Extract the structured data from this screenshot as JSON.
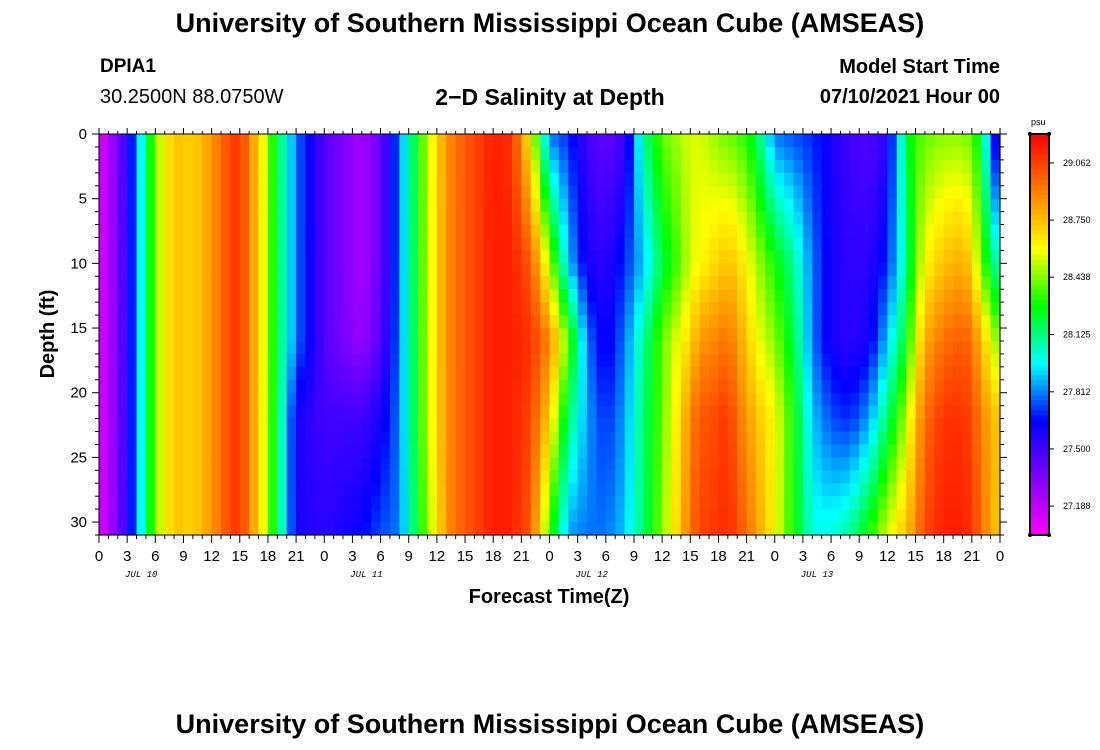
{
  "header": {
    "title": "University of Southern Mississippi Ocean Cube (AMSEAS)",
    "station_id": "DPIA1",
    "station_coords": "30.2500N  88.0750W",
    "plot_title": "2−D Salinity at Depth",
    "model_start_label": "Model Start Time",
    "model_start_value": "07/10/2021 Hour 00"
  },
  "footer": {
    "title": "University of Southern Mississippi Ocean Cube (AMSEAS)"
  },
  "chart_data": {
    "type": "heatmap",
    "title": "2−D Salinity at Depth",
    "xlabel": "Forecast Time(Z)",
    "ylabel": "Depth (ft)",
    "x_unit": "hours since 07/10/2021 00Z",
    "x_range": [
      0,
      96
    ],
    "y_range": [
      0,
      31
    ],
    "y_ticks": [
      0,
      5,
      10,
      15,
      20,
      25,
      30
    ],
    "x_tick_labels": [
      "0",
      "3",
      "6",
      "9",
      "12",
      "15",
      "18",
      "21",
      "0",
      "3",
      "6",
      "9",
      "12",
      "15",
      "18",
      "21",
      "0",
      "3",
      "6",
      "9",
      "12",
      "15",
      "18",
      "21",
      "0",
      "3",
      "6",
      "9",
      "12",
      "15",
      "18",
      "21",
      "0"
    ],
    "date_labels": [
      "JUL 10",
      "JUL 11",
      "JUL 12",
      "JUL 13"
    ],
    "colorbar": {
      "unit": "psu",
      "range": [
        27.03,
        29.22
      ],
      "ticks": [
        27.188,
        27.5,
        27.812,
        28.125,
        28.438,
        28.75,
        29.062
      ],
      "colors": [
        "#ff00ff",
        "#8000ff",
        "#0000ff",
        "#00ffff",
        "#00ff00",
        "#ffff00",
        "#ff8000",
        "#ff0000"
      ]
    },
    "hours": [
      0,
      2,
      4,
      5,
      6,
      8,
      10,
      12,
      14,
      15,
      17,
      19,
      21,
      24,
      28,
      30,
      32,
      34,
      36,
      37,
      38,
      40,
      42,
      44,
      46,
      48,
      50,
      52,
      54,
      56,
      58,
      60,
      62,
      63,
      64,
      66,
      67,
      68,
      70,
      72,
      74,
      76,
      78,
      80,
      82,
      84,
      86,
      87,
      88,
      90,
      92,
      93,
      94,
      96
    ],
    "depths": [
      0,
      10,
      16,
      22,
      31
    ],
    "salinity": [
      [
        27.1,
        27.1,
        27.1,
        27.1,
        27.1
      ],
      [
        27.35,
        27.35,
        27.35,
        27.35,
        27.35
      ],
      [
        27.8,
        27.8,
        27.8,
        27.8,
        27.8
      ],
      [
        28.15,
        28.15,
        28.15,
        28.15,
        28.15
      ],
      [
        28.45,
        28.45,
        28.45,
        28.45,
        28.45
      ],
      [
        28.75,
        28.75,
        28.75,
        28.75,
        28.75
      ],
      [
        28.7,
        28.7,
        28.7,
        28.7,
        28.7
      ],
      [
        28.85,
        28.85,
        28.85,
        28.85,
        28.85
      ],
      [
        29.05,
        29.05,
        29.05,
        29.05,
        29.05
      ],
      [
        29.1,
        29.1,
        29.1,
        29.1,
        29.1
      ],
      [
        28.7,
        28.7,
        28.7,
        28.7,
        28.7
      ],
      [
        28.2,
        28.2,
        28.2,
        28.2,
        28.2
      ],
      [
        27.8,
        27.8,
        27.8,
        27.6,
        27.6
      ],
      [
        27.45,
        27.45,
        27.45,
        27.5,
        27.55
      ],
      [
        27.25,
        27.25,
        27.28,
        27.5,
        27.65
      ],
      [
        27.4,
        27.4,
        27.45,
        27.6,
        27.75
      ],
      [
        27.8,
        27.8,
        27.8,
        27.8,
        27.8
      ],
      [
        28.3,
        28.3,
        28.3,
        28.3,
        28.25
      ],
      [
        28.7,
        28.7,
        28.7,
        28.7,
        28.65
      ],
      [
        28.85,
        28.85,
        28.85,
        28.85,
        28.85
      ],
      [
        28.95,
        28.95,
        28.95,
        28.95,
        28.95
      ],
      [
        29.05,
        29.05,
        29.05,
        29.05,
        29.05
      ],
      [
        29.15,
        29.15,
        29.15,
        29.15,
        29.15
      ],
      [
        29.1,
        29.15,
        29.15,
        29.15,
        29.15
      ],
      [
        28.6,
        29.0,
        29.1,
        29.05,
        29.0
      ],
      [
        27.8,
        28.5,
        28.9,
        28.7,
        28.35
      ],
      [
        27.7,
        27.9,
        28.4,
        28.15,
        27.85
      ],
      [
        27.5,
        27.6,
        27.8,
        27.85,
        27.8
      ],
      [
        27.4,
        27.55,
        27.6,
        27.7,
        27.8
      ],
      [
        27.5,
        27.7,
        27.8,
        27.85,
        27.9
      ],
      [
        28.1,
        27.9,
        28.1,
        28.15,
        28.15
      ],
      [
        28.4,
        28.2,
        28.4,
        28.4,
        28.45
      ],
      [
        28.5,
        28.4,
        28.6,
        28.7,
        28.75
      ],
      [
        28.55,
        28.55,
        28.7,
        28.9,
        28.95
      ],
      [
        28.55,
        28.6,
        28.85,
        29.0,
        29.05
      ],
      [
        28.45,
        28.7,
        28.9,
        29.05,
        29.1
      ],
      [
        28.4,
        28.75,
        28.95,
        29.1,
        29.12
      ],
      [
        28.4,
        28.7,
        28.85,
        28.95,
        29.05
      ],
      [
        28.2,
        28.5,
        28.6,
        28.75,
        28.85
      ],
      [
        27.8,
        28.3,
        28.45,
        28.6,
        28.6
      ],
      [
        27.75,
        28.1,
        28.2,
        28.3,
        28.3
      ],
      [
        27.7,
        27.8,
        27.8,
        27.9,
        28.0
      ],
      [
        27.6,
        27.6,
        27.6,
        27.75,
        28.0
      ],
      [
        27.5,
        27.55,
        27.55,
        27.7,
        28.1
      ],
      [
        27.45,
        27.55,
        27.6,
        27.85,
        28.3
      ],
      [
        27.55,
        27.7,
        27.9,
        28.15,
        28.55
      ],
      [
        28.2,
        28.1,
        28.25,
        28.5,
        28.75
      ],
      [
        28.35,
        28.4,
        28.55,
        28.75,
        28.9
      ],
      [
        28.4,
        28.6,
        28.8,
        28.95,
        29.05
      ],
      [
        28.45,
        28.75,
        28.95,
        29.1,
        29.15
      ],
      [
        28.45,
        28.8,
        29.0,
        29.1,
        29.15
      ],
      [
        28.4,
        28.7,
        28.95,
        29.05,
        29.1
      ],
      [
        28.2,
        28.4,
        28.75,
        28.9,
        28.95
      ],
      [
        27.4,
        28.0,
        28.4,
        28.7,
        28.7
      ]
    ]
  }
}
